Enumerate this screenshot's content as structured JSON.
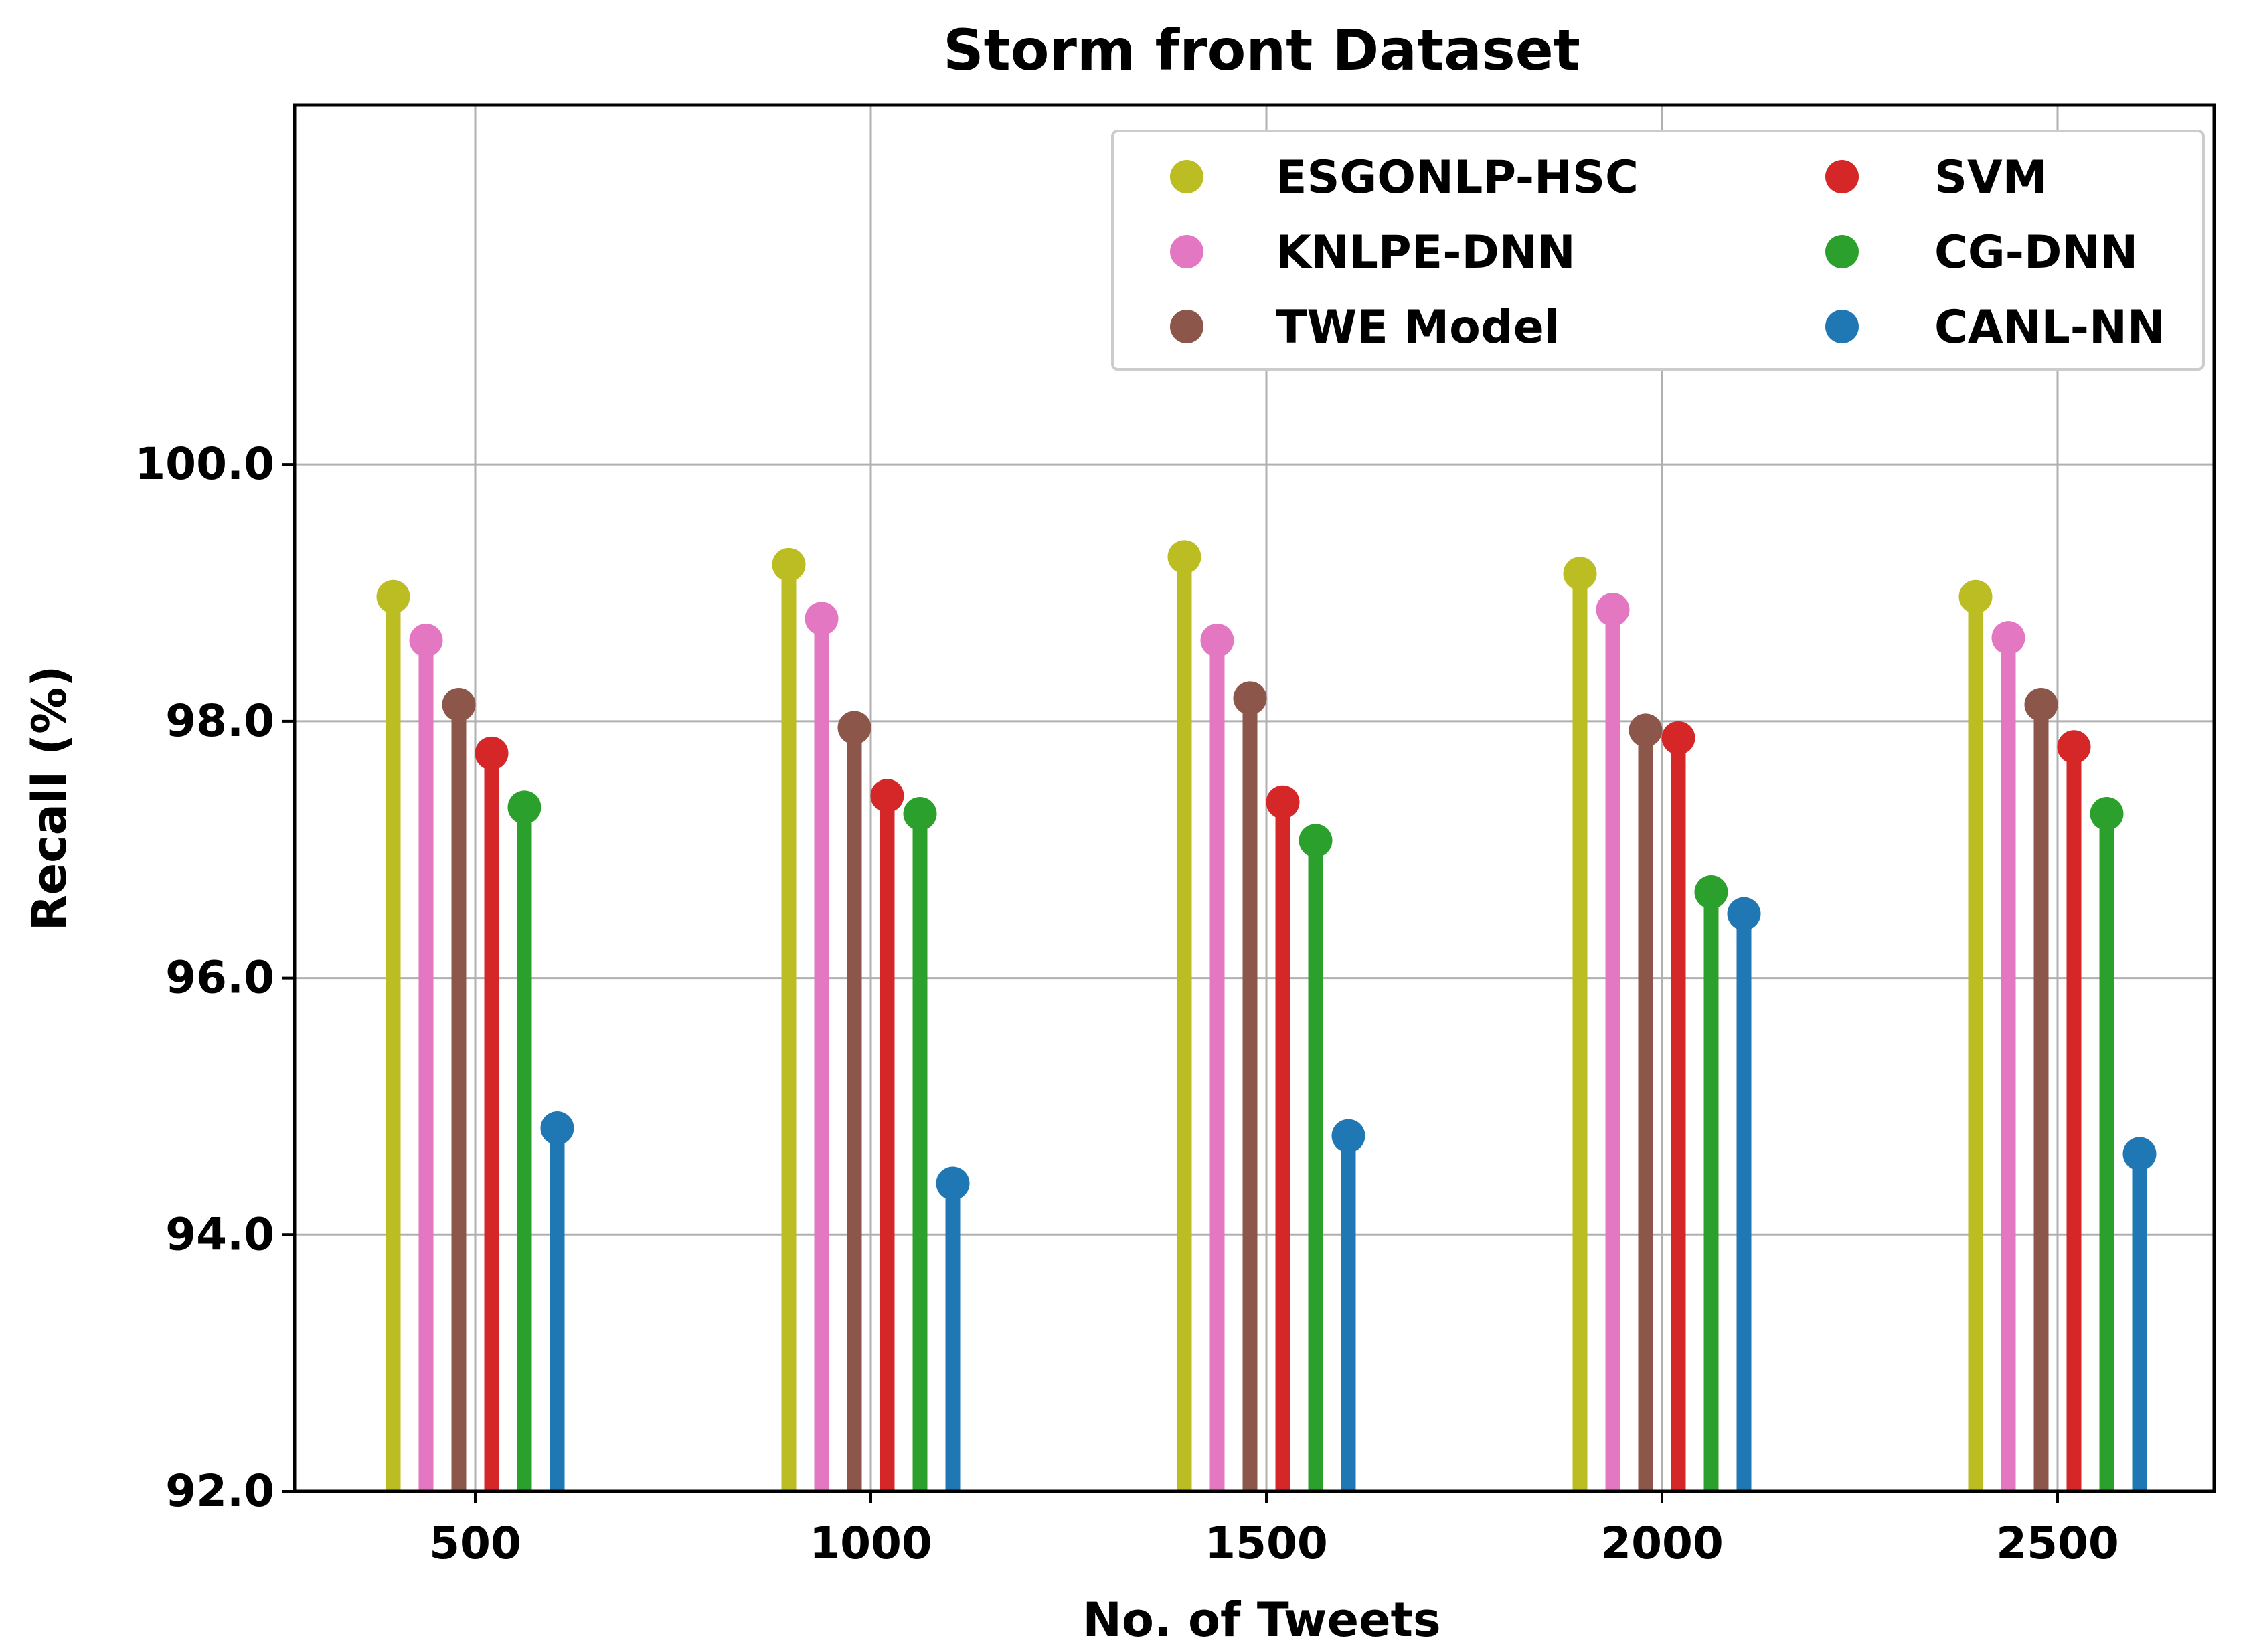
{
  "chart_data": {
    "type": "lollipop",
    "title": "Storm front Dataset",
    "xlabel": "No. of Tweets",
    "ylabel": "Recall (%)",
    "categories": [
      "500",
      "1000",
      "1500",
      "2000",
      "2500"
    ],
    "ylim": [
      92.0,
      102.8
    ],
    "yticks": [
      "92.0",
      "94.0",
      "96.0",
      "98.0",
      "100.0"
    ],
    "grid": true,
    "legend_position": "top-right",
    "series": [
      {
        "name": "ESGONLP-HSC",
        "color": "#bcbd22",
        "values": [
          98.97,
          99.22,
          99.28,
          99.15,
          98.97
        ]
      },
      {
        "name": "KNLPE-DNN",
        "color": "#e377c2",
        "values": [
          98.63,
          98.8,
          98.63,
          98.87,
          98.65
        ]
      },
      {
        "name": "TWE Model",
        "color": "#8c564b",
        "values": [
          98.13,
          97.95,
          98.18,
          97.93,
          98.13
        ]
      },
      {
        "name": "SVM",
        "color": "#d62728",
        "values": [
          97.75,
          97.42,
          97.37,
          97.87,
          97.8
        ]
      },
      {
        "name": "CG-DNN",
        "color": "#2ca02c",
        "values": [
          97.33,
          97.28,
          97.07,
          96.67,
          97.28
        ]
      },
      {
        "name": "CANL-NN",
        "color": "#1f77b4",
        "values": [
          94.83,
          94.4,
          94.77,
          96.5,
          94.63
        ]
      }
    ]
  }
}
